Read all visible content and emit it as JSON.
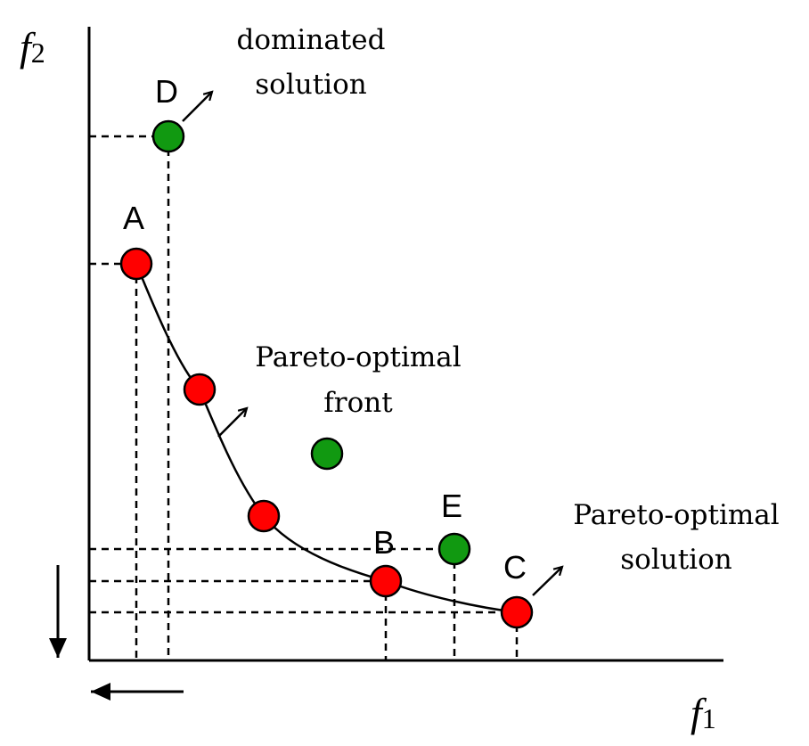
{
  "axes": {
    "x_label": "f",
    "x_subscript": "1",
    "y_label": "f",
    "y_subscript": "2"
  },
  "annotations": {
    "dominated_line1": "dominated",
    "dominated_line2": "solution",
    "front_line1": "Pareto-optimal",
    "front_line2": "front",
    "solution_line1": "Pareto-optimal",
    "solution_line2": "solution"
  },
  "point_labels": {
    "A": "A",
    "B": "B",
    "C": "C",
    "D": "D",
    "E": "E"
  },
  "colors": {
    "pareto_point": "#ff0000",
    "dominated_point": "#119911",
    "line": "#000000"
  }
}
